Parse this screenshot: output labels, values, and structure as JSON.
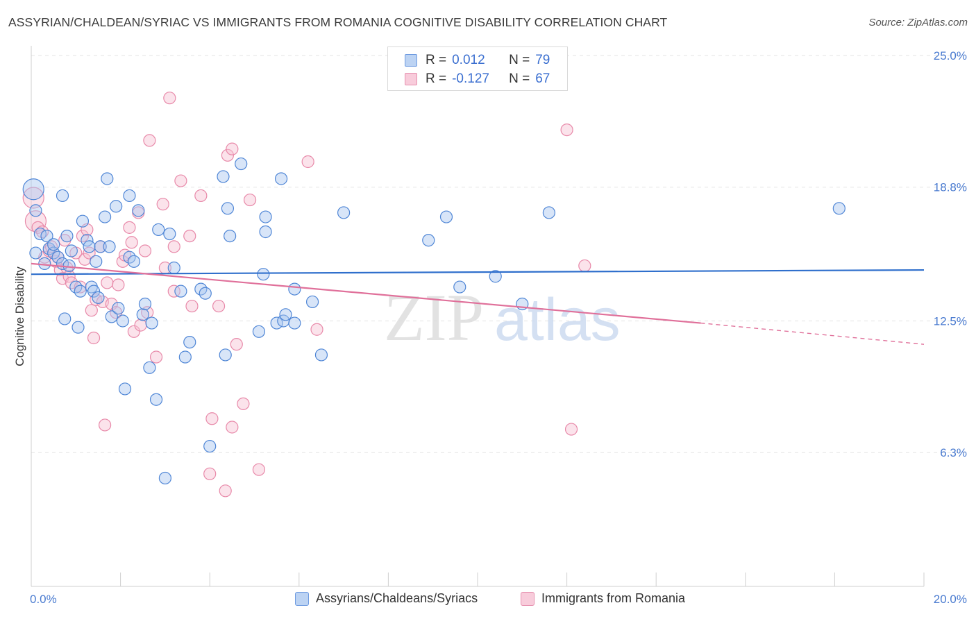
{
  "title": "ASSYRIAN/CHALDEAN/SYRIAC VS IMMIGRANTS FROM ROMANIA COGNITIVE DISABILITY CORRELATION CHART",
  "source": "Source: ZipAtlas.com",
  "legend": {
    "rows": [
      {
        "r_label": "R =",
        "r_value": "0.012",
        "n_label": "N =",
        "n_value": "79"
      },
      {
        "r_label": "R =",
        "r_value": "-0.127",
        "n_label": "N =",
        "n_value": "67"
      }
    ]
  },
  "watermark": {
    "zip": "ZIP",
    "atlas": "atlas"
  },
  "colors": {
    "blue_fill": "#a9c6ef",
    "blue_stroke": "#4f86d6",
    "blue_line": "#2f6fcc",
    "pink_fill": "#f6c0d2",
    "pink_stroke": "#e889a9",
    "pink_line": "#e0709a",
    "tick_text": "#4a7bd0",
    "grid": "#e3e3e3"
  },
  "chart_data": {
    "type": "scatter",
    "title": "ASSYRIAN/CHALDEAN/SYRIAC VS IMMIGRANTS FROM ROMANIA COGNITIVE DISABILITY CORRELATION CHART",
    "xlabel": "",
    "ylabel": "Cognitive Disability",
    "xlim": [
      0,
      20
    ],
    "ylim": [
      0,
      25
    ],
    "x_tick_labels": [
      "0.0%",
      "20.0%"
    ],
    "y_ticks": [
      6.3,
      12.5,
      18.8,
      25.0
    ],
    "y_tick_labels": [
      "6.3%",
      "12.5%",
      "18.8%",
      "25.0%"
    ],
    "grid": true,
    "legend_position": "bottom",
    "series": [
      {
        "name": "Assyrians/Chaldeans/Syriacs",
        "color": "#4f86d6",
        "trend": {
          "x": [
            0,
            20
          ],
          "y": [
            14.7,
            14.9
          ]
        },
        "points": [
          [
            0.05,
            18.7
          ],
          [
            0.1,
            17.7
          ],
          [
            0.1,
            15.7
          ],
          [
            0.2,
            16.6
          ],
          [
            0.3,
            15.2
          ],
          [
            0.35,
            16.5
          ],
          [
            0.4,
            15.9
          ],
          [
            0.5,
            15.7
          ],
          [
            0.5,
            16.1
          ],
          [
            0.6,
            15.5
          ],
          [
            0.7,
            15.2
          ],
          [
            0.8,
            16.5
          ],
          [
            0.7,
            18.4
          ],
          [
            0.75,
            12.6
          ],
          [
            0.85,
            15.1
          ],
          [
            0.9,
            15.8
          ],
          [
            1.0,
            14.1
          ],
          [
            1.05,
            12.2
          ],
          [
            1.1,
            13.9
          ],
          [
            1.15,
            17.2
          ],
          [
            1.25,
            16.3
          ],
          [
            1.3,
            16.0
          ],
          [
            1.35,
            14.1
          ],
          [
            1.4,
            13.9
          ],
          [
            1.45,
            15.3
          ],
          [
            1.5,
            13.6
          ],
          [
            1.55,
            16.0
          ],
          [
            1.65,
            17.4
          ],
          [
            1.7,
            19.2
          ],
          [
            1.75,
            16.0
          ],
          [
            1.8,
            12.7
          ],
          [
            1.9,
            17.9
          ],
          [
            1.95,
            13.1
          ],
          [
            2.05,
            12.5
          ],
          [
            2.1,
            9.3
          ],
          [
            2.2,
            18.4
          ],
          [
            2.2,
            15.5
          ],
          [
            2.3,
            15.3
          ],
          [
            2.4,
            17.7
          ],
          [
            2.5,
            12.8
          ],
          [
            2.55,
            13.3
          ],
          [
            2.65,
            10.3
          ],
          [
            2.7,
            12.4
          ],
          [
            2.8,
            8.8
          ],
          [
            2.85,
            16.8
          ],
          [
            3.0,
            5.1
          ],
          [
            3.1,
            16.6
          ],
          [
            3.2,
            15.0
          ],
          [
            3.35,
            13.9
          ],
          [
            3.45,
            10.8
          ],
          [
            3.55,
            11.5
          ],
          [
            3.8,
            14.0
          ],
          [
            3.9,
            13.8
          ],
          [
            4.0,
            6.6
          ],
          [
            4.3,
            19.3
          ],
          [
            4.35,
            10.9
          ],
          [
            4.4,
            17.8
          ],
          [
            4.45,
            16.5
          ],
          [
            4.7,
            19.9
          ],
          [
            5.1,
            12.0
          ],
          [
            5.2,
            14.7
          ],
          [
            5.25,
            16.7
          ],
          [
            5.25,
            17.4
          ],
          [
            5.5,
            12.4
          ],
          [
            5.6,
            19.2
          ],
          [
            5.65,
            12.5
          ],
          [
            5.7,
            12.8
          ],
          [
            5.9,
            14.0
          ],
          [
            5.9,
            12.4
          ],
          [
            6.3,
            13.4
          ],
          [
            6.5,
            10.9
          ],
          [
            7.0,
            17.6
          ],
          [
            8.9,
            16.3
          ],
          [
            9.3,
            17.4
          ],
          [
            9.6,
            14.1
          ],
          [
            10.4,
            14.6
          ],
          [
            11.0,
            13.3
          ],
          [
            11.6,
            17.6
          ],
          [
            18.1,
            17.8
          ]
        ]
      },
      {
        "name": "Immigrants from Romania",
        "color": "#e889a9",
        "trend": {
          "x": [
            0,
            15
          ],
          "y": [
            15.2,
            12.4
          ]
        },
        "trend_dashed": {
          "x": [
            15,
            20
          ],
          "y": [
            12.4,
            11.4
          ]
        },
        "points": [
          [
            0.05,
            18.3
          ],
          [
            0.1,
            17.2
          ],
          [
            0.15,
            16.9
          ],
          [
            0.25,
            16.7
          ],
          [
            0.3,
            15.5
          ],
          [
            0.4,
            15.8
          ],
          [
            0.45,
            16.0
          ],
          [
            0.55,
            15.3
          ],
          [
            0.6,
            15.5
          ],
          [
            0.65,
            14.9
          ],
          [
            0.7,
            14.5
          ],
          [
            0.75,
            16.3
          ],
          [
            0.8,
            15.0
          ],
          [
            0.85,
            14.6
          ],
          [
            0.9,
            14.3
          ],
          [
            1.0,
            15.7
          ],
          [
            1.1,
            14.1
          ],
          [
            1.15,
            16.5
          ],
          [
            1.2,
            15.4
          ],
          [
            1.25,
            16.8
          ],
          [
            1.3,
            15.7
          ],
          [
            1.35,
            13.0
          ],
          [
            1.4,
            11.7
          ],
          [
            1.45,
            13.5
          ],
          [
            1.55,
            16.0
          ],
          [
            1.6,
            13.4
          ],
          [
            1.65,
            7.6
          ],
          [
            1.7,
            14.3
          ],
          [
            1.8,
            13.3
          ],
          [
            1.9,
            12.9
          ],
          [
            1.95,
            14.2
          ],
          [
            2.05,
            15.3
          ],
          [
            2.1,
            15.6
          ],
          [
            2.2,
            16.9
          ],
          [
            2.25,
            16.2
          ],
          [
            2.3,
            12.0
          ],
          [
            2.4,
            17.6
          ],
          [
            2.45,
            12.3
          ],
          [
            2.55,
            15.8
          ],
          [
            2.6,
            12.9
          ],
          [
            2.65,
            21.0
          ],
          [
            2.8,
            10.8
          ],
          [
            2.95,
            18.0
          ],
          [
            3.0,
            15.0
          ],
          [
            3.1,
            23.0
          ],
          [
            3.2,
            16.0
          ],
          [
            3.35,
            19.1
          ],
          [
            3.55,
            16.5
          ],
          [
            3.6,
            13.2
          ],
          [
            3.8,
            18.4
          ],
          [
            4.0,
            5.3
          ],
          [
            4.05,
            7.9
          ],
          [
            4.2,
            13.2
          ],
          [
            4.35,
            4.5
          ],
          [
            4.4,
            20.3
          ],
          [
            4.5,
            20.6
          ],
          [
            4.5,
            7.5
          ],
          [
            4.6,
            11.4
          ],
          [
            4.75,
            8.6
          ],
          [
            4.9,
            18.2
          ],
          [
            5.1,
            5.5
          ],
          [
            6.2,
            20.0
          ],
          [
            6.4,
            12.1
          ],
          [
            12.0,
            21.5
          ],
          [
            12.1,
            7.4
          ],
          [
            12.4,
            15.1
          ],
          [
            3.2,
            13.9
          ]
        ]
      }
    ]
  },
  "bottom_legend": [
    {
      "label": "Assyrians/Chaldeans/Syriacs"
    },
    {
      "label": "Immigrants from Romania"
    }
  ]
}
